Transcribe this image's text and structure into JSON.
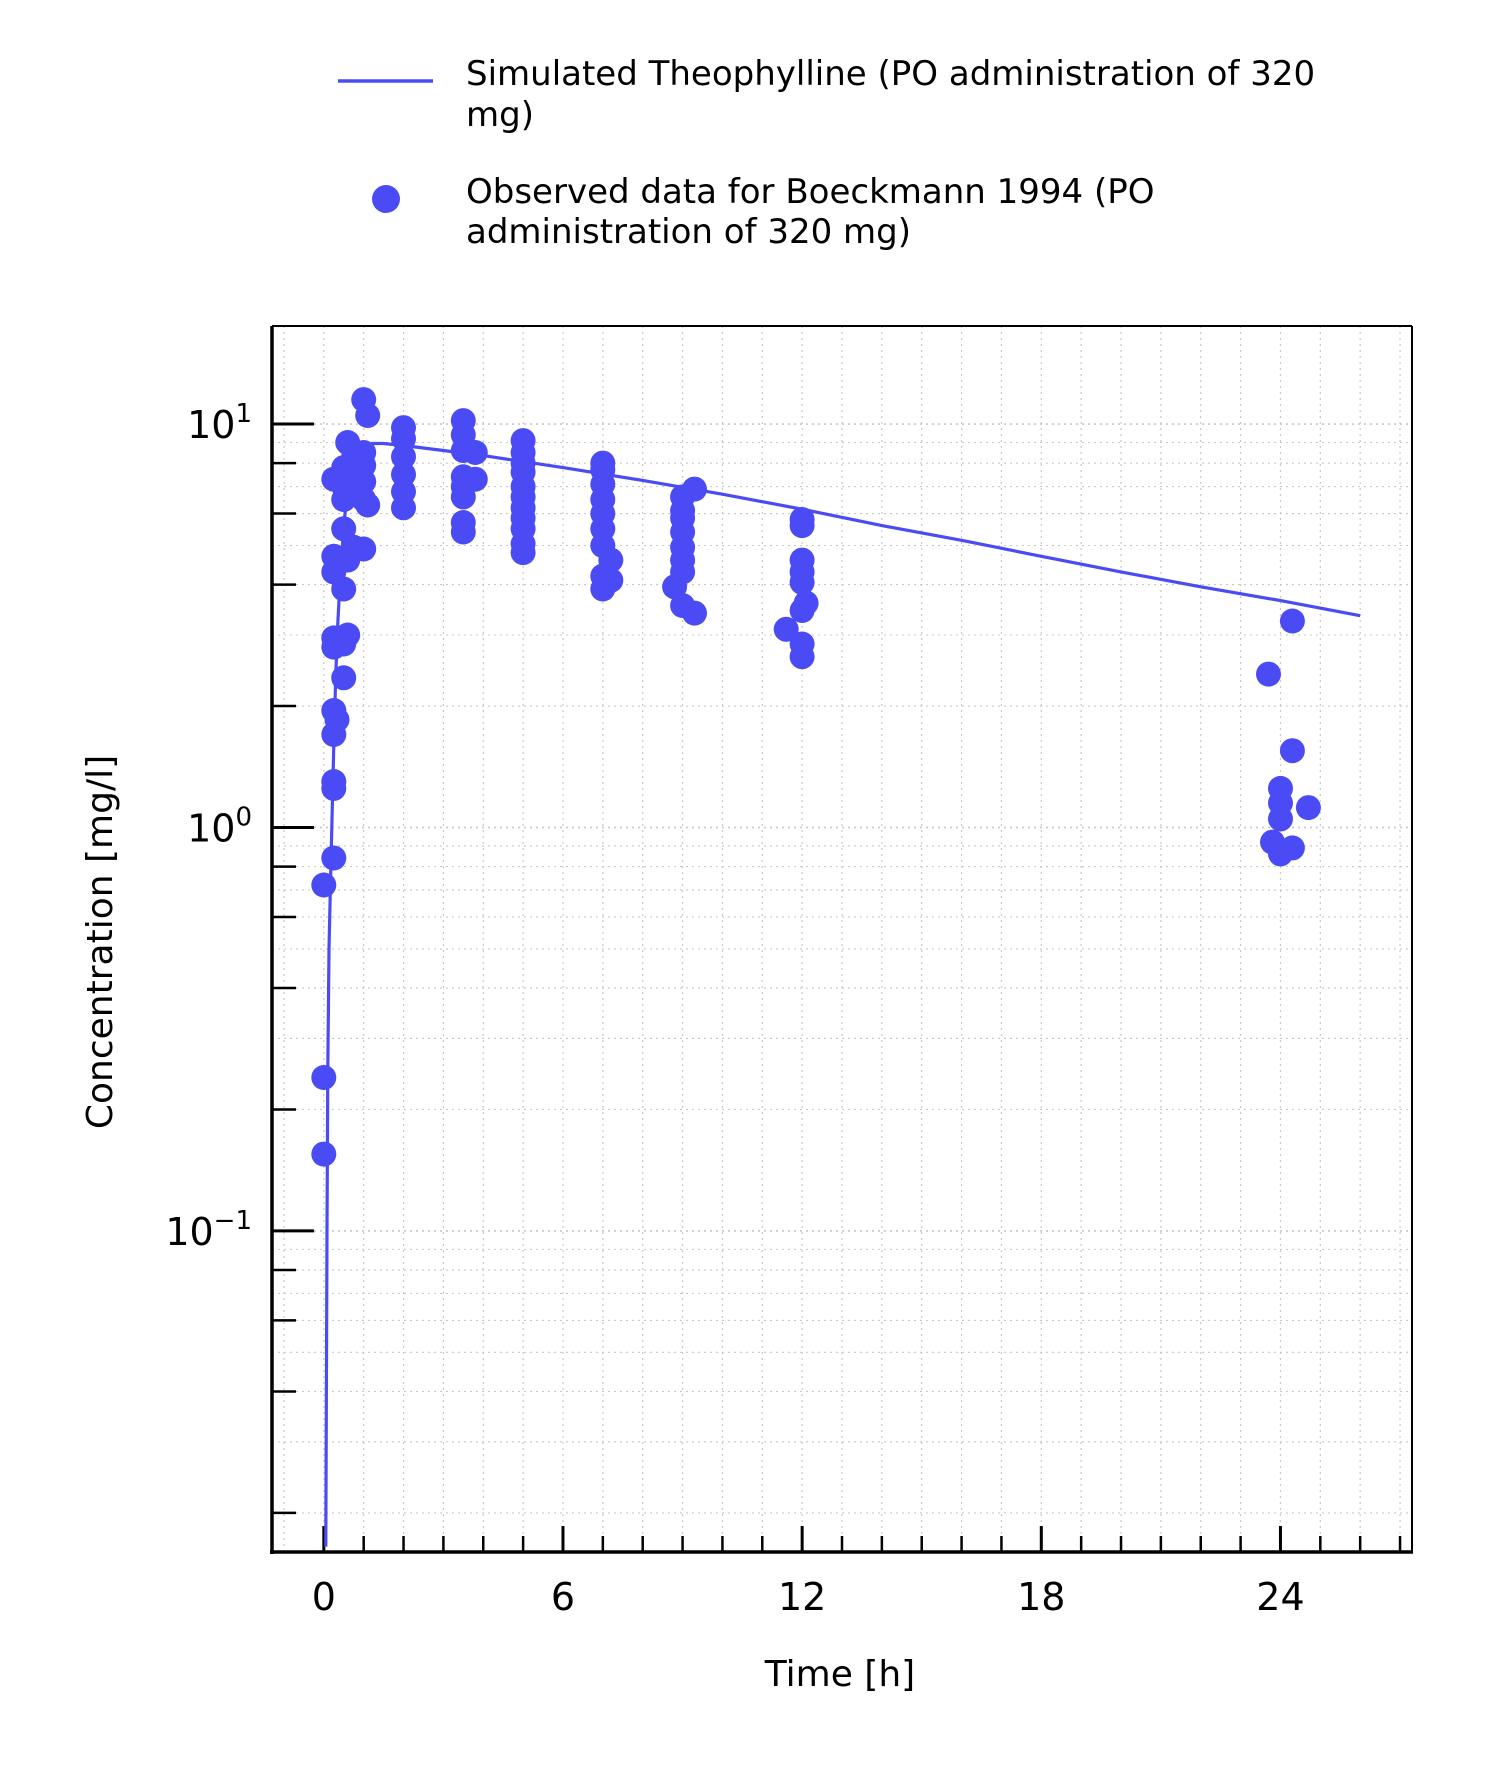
{
  "chart_data": {
    "type": "scatter",
    "xlabel": "Time [h]",
    "ylabel": "Concentration [mg/l]",
    "xlim": [
      -1.3,
      27.3
    ],
    "ylim": [
      0.016,
      17.5
    ],
    "y_scale": "log",
    "x_ticks": [
      0,
      6,
      12,
      18,
      24
    ],
    "x_tick_labels": [
      "0",
      "6",
      "12",
      "18",
      "24"
    ],
    "y_ticks": [
      0.1,
      1,
      10
    ],
    "y_tick_labels": [
      {
        "base": "10",
        "exp": "−1"
      },
      {
        "base": "10",
        "exp": "0"
      },
      {
        "base": "10",
        "exp": "1"
      }
    ],
    "grid": true,
    "legend_position": "top",
    "colors": {
      "series": "#4b4bf5",
      "axis": "#000000",
      "grid": "#c8c8c8"
    },
    "series": [
      {
        "name": "Simulated Theophylline (PO administration of 320 mg)",
        "legend_lines": [
          "Simulated Theophylline (PO administration of 320",
          "mg)"
        ],
        "type": "line",
        "x": [
          0.05,
          0.08,
          0.1,
          0.13,
          0.17,
          0.2,
          0.25,
          0.3,
          0.35,
          0.4,
          0.5,
          0.6,
          0.7,
          0.8,
          1.0,
          1.2,
          1.5,
          2.0,
          3.0,
          4.0,
          6.0,
          8.0,
          10.0,
          12.0,
          14.0,
          16.0,
          18.0,
          20.0,
          22.0,
          24.0,
          26.0
        ],
        "y": [
          0.0165,
          0.1,
          0.25,
          0.5,
          0.75,
          1.0,
          1.6,
          2.4,
          3.2,
          4.0,
          5.6,
          6.9,
          7.8,
          8.4,
          8.85,
          8.95,
          8.95,
          8.85,
          8.6,
          8.35,
          7.8,
          7.25,
          6.7,
          6.15,
          5.6,
          5.15,
          4.7,
          4.3,
          3.95,
          3.65,
          3.35
        ]
      },
      {
        "name": "Observed data for Boeckmann 1994 (PO administration of 320 mg)",
        "legend_lines": [
          "Observed data for Boeckmann 1994 (PO",
          "administration of 320 mg)"
        ],
        "type": "scatter",
        "points": [
          [
            0.0,
            0.155
          ],
          [
            0.0,
            0.24
          ],
          [
            0.0,
            0.72
          ],
          [
            0.25,
            0.84
          ],
          [
            0.25,
            1.25
          ],
          [
            0.25,
            1.3
          ],
          [
            0.25,
            1.7
          ],
          [
            0.25,
            1.95
          ],
          [
            0.25,
            2.8
          ],
          [
            0.25,
            2.95
          ],
          [
            0.25,
            4.3
          ],
          [
            0.25,
            4.7
          ],
          [
            0.25,
            7.3
          ],
          [
            0.33,
            1.85
          ],
          [
            0.33,
            4.55
          ],
          [
            0.5,
            2.35
          ],
          [
            0.5,
            2.85
          ],
          [
            0.5,
            3.9
          ],
          [
            0.5,
            5.5
          ],
          [
            0.5,
            6.5
          ],
          [
            0.5,
            7.0
          ],
          [
            0.5,
            7.8
          ],
          [
            0.6,
            3.0
          ],
          [
            0.6,
            4.6
          ],
          [
            0.6,
            9.0
          ],
          [
            0.75,
            4.95
          ],
          [
            0.75,
            6.8
          ],
          [
            0.75,
            7.6
          ],
          [
            0.75,
            8.3
          ],
          [
            1.0,
            11.5
          ],
          [
            1.0,
            4.9
          ],
          [
            1.0,
            6.5
          ],
          [
            1.0,
            7.2
          ],
          [
            1.0,
            7.9
          ],
          [
            1.0,
            8.5
          ],
          [
            1.1,
            10.5
          ],
          [
            1.1,
            6.3
          ],
          [
            2.0,
            6.2
          ],
          [
            2.0,
            6.8
          ],
          [
            2.0,
            7.5
          ],
          [
            2.0,
            8.3
          ],
          [
            2.0,
            9.2
          ],
          [
            2.0,
            9.8
          ],
          [
            3.5,
            5.4
          ],
          [
            3.5,
            5.7
          ],
          [
            3.5,
            6.6
          ],
          [
            3.5,
            7.0
          ],
          [
            3.5,
            7.4
          ],
          [
            3.5,
            8.6
          ],
          [
            3.5,
            9.4
          ],
          [
            3.5,
            10.2
          ],
          [
            3.8,
            7.3
          ],
          [
            3.8,
            8.5
          ],
          [
            5.0,
            4.8
          ],
          [
            5.0,
            5.05
          ],
          [
            5.0,
            5.5
          ],
          [
            5.0,
            5.85
          ],
          [
            5.0,
            6.2
          ],
          [
            5.0,
            6.6
          ],
          [
            5.0,
            7.0
          ],
          [
            5.0,
            7.6
          ],
          [
            5.0,
            8.0
          ],
          [
            5.0,
            8.5
          ],
          [
            5.0,
            9.1
          ],
          [
            7.0,
            3.9
          ],
          [
            7.0,
            4.2
          ],
          [
            7.0,
            5.0
          ],
          [
            7.0,
            5.5
          ],
          [
            7.0,
            6.0
          ],
          [
            7.0,
            6.5
          ],
          [
            7.0,
            7.1
          ],
          [
            7.0,
            7.7
          ],
          [
            7.0,
            8.0
          ],
          [
            7.2,
            4.1
          ],
          [
            7.2,
            4.6
          ],
          [
            8.8,
            3.95
          ],
          [
            9.0,
            3.55
          ],
          [
            9.0,
            4.3
          ],
          [
            9.0,
            4.6
          ],
          [
            9.0,
            4.95
          ],
          [
            9.0,
            5.4
          ],
          [
            9.0,
            5.85
          ],
          [
            9.0,
            6.1
          ],
          [
            9.0,
            6.6
          ],
          [
            9.3,
            3.4
          ],
          [
            9.3,
            6.9
          ],
          [
            11.6,
            3.1
          ],
          [
            12.0,
            2.65
          ],
          [
            12.0,
            2.85
          ],
          [
            12.0,
            3.45
          ],
          [
            12.0,
            4.05
          ],
          [
            12.0,
            4.3
          ],
          [
            12.0,
            4.6
          ],
          [
            12.0,
            5.6
          ],
          [
            12.0,
            5.8
          ],
          [
            12.1,
            3.6
          ],
          [
            23.7,
            2.4
          ],
          [
            23.8,
            0.92
          ],
          [
            24.0,
            0.86
          ],
          [
            24.0,
            1.05
          ],
          [
            24.0,
            1.15
          ],
          [
            24.0,
            1.25
          ],
          [
            24.3,
            0.89
          ],
          [
            24.3,
            1.55
          ],
          [
            24.3,
            3.25
          ],
          [
            24.7,
            1.12
          ]
        ]
      }
    ]
  }
}
